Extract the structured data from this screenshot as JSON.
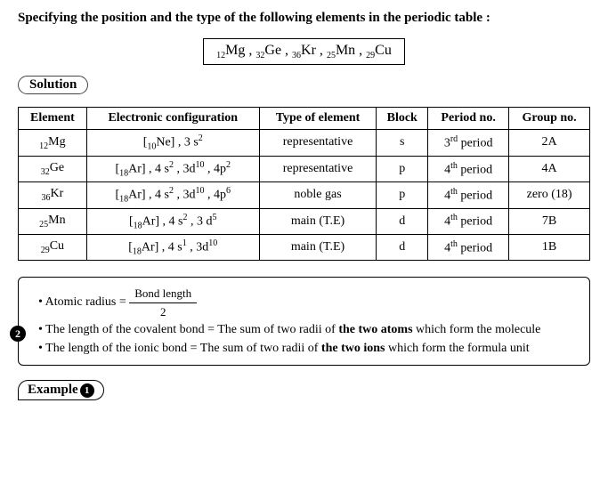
{
  "heading": "Specifying the position and the type of the following elements in the periodic table :",
  "elements_list_html": "<span class='sub'>12</span>Mg , <span class='sub'>32</span>Ge , <span class='sub'>36</span>Kr , <span class='sub'>25</span>Mn , <span class='sub'>29</span>Cu",
  "solution_label": "Solution",
  "table": {
    "headers": [
      "Element",
      "Electronic configuration",
      "Type of element",
      "Block",
      "Period no.",
      "Group no."
    ],
    "rows": [
      {
        "element": "<span class='sub'>12</span>Mg",
        "config": "[<span class='sub'>10</span>Ne] , 3 s<span class='sup'>2</span>",
        "type": "representative",
        "block": "s",
        "period": "3<span class='sup'>rd</span> period",
        "group": "2A"
      },
      {
        "element": "<span class='sub'>32</span>Ge",
        "config": "[<span class='sub'>18</span>Ar] , 4 s<span class='sup'>2</span> , 3d<span class='sup'>10</span> , 4p<span class='sup'>2</span>",
        "type": "representative",
        "block": "p",
        "period": "4<span class='sup'>th</span> period",
        "group": "4A"
      },
      {
        "element": "<span class='sub'>36</span>Kr",
        "config": "[<span class='sub'>18</span>Ar] , 4 s<span class='sup'>2</span> , 3d<span class='sup'>10</span> , 4p<span class='sup'>6</span>",
        "type": "noble gas",
        "block": "p",
        "period": "4<span class='sup'>th</span> period",
        "group": "zero (18)"
      },
      {
        "element": "<span class='sub'>25</span>Mn",
        "config": "[<span class='sub'>18</span>Ar] , 4 s<span class='sup'>2</span> , 3 d<span class='sup'>5</span>",
        "type": "main (T.E)",
        "block": "d",
        "period": "4<span class='sup'>th</span> period",
        "group": "7B"
      },
      {
        "element": "<span class='sub'>29</span>Cu",
        "config": "[<span class='sub'>18</span>Ar] , 4 s<span class='sup'>1</span> , 3d<span class='sup'>10</span>",
        "type": "main (T.E)",
        "block": "d",
        "period": "4<span class='sup'>th</span> period",
        "group": "1B"
      }
    ]
  },
  "notes": {
    "badge": "2",
    "line1_prefix": "• Atomic radius  =  ",
    "frac_top": "Bond length",
    "frac_bot": "2",
    "line2": "• The length of the covalent bond = The sum of two radii of <b>the two atoms</b> which form the molecule",
    "line3": "• The length of the ionic bond = The sum of two radii of <b>the two ions</b> which form the formula unit"
  },
  "example_label": "Example",
  "example_num": "1"
}
